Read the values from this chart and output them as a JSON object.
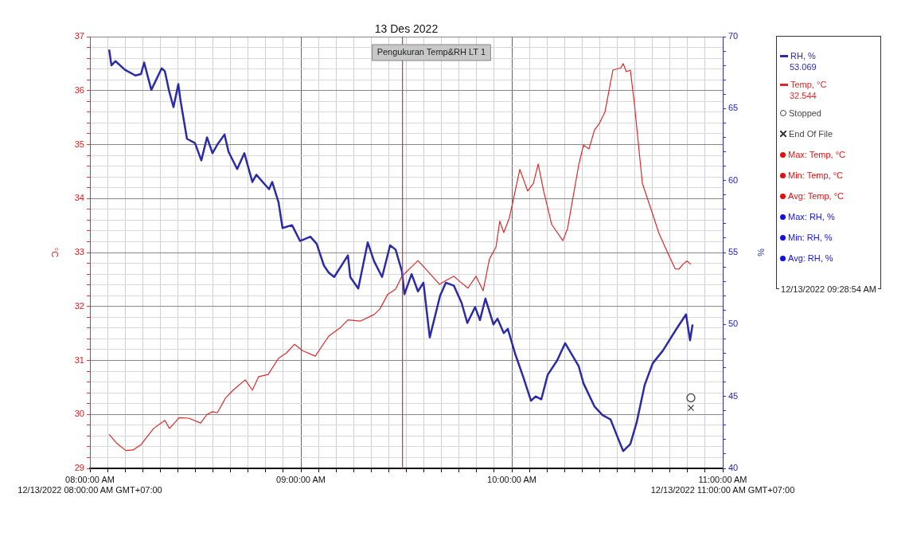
{
  "chart_data": {
    "type": "line",
    "title": "13 Des 2022",
    "ylabel": "°C",
    "y2label": "%",
    "legend": "right",
    "grid": true,
    "marker": "none",
    "line_style": "solid",
    "xlim": [
      8,
      11
    ],
    "xticks": [
      {
        "value": 8,
        "label": "08:00:00 AM\n12/13/2022 08:00:00 AM GMT+07:00"
      },
      {
        "value": 8.0833,
        "label": null
      },
      {
        "value": 8.1667,
        "label": null
      },
      {
        "value": 8.25,
        "label": null
      },
      {
        "value": 8.3333,
        "label": null
      },
      {
        "value": 8.4167,
        "label": null
      },
      {
        "value": 8.5,
        "label": null
      },
      {
        "value": 8.5833,
        "label": null
      },
      {
        "value": 8.6667,
        "label": null
      },
      {
        "value": 8.75,
        "label": null
      },
      {
        "value": 8.8333,
        "label": null
      },
      {
        "value": 8.9167,
        "label": null
      },
      {
        "value": 9,
        "label": "09:00:00 AM"
      },
      {
        "value": 9.0833,
        "label": null
      },
      {
        "value": 9.1667,
        "label": null
      },
      {
        "value": 9.25,
        "label": null
      },
      {
        "value": 9.3333,
        "label": null
      },
      {
        "value": 9.4167,
        "label": null
      },
      {
        "value": 9.5,
        "label": null
      },
      {
        "value": 9.5833,
        "label": null
      },
      {
        "value": 9.6667,
        "label": null
      },
      {
        "value": 9.75,
        "label": null
      },
      {
        "value": 9.8333,
        "label": null
      },
      {
        "value": 9.9167,
        "label": null
      },
      {
        "value": 10,
        "label": "10:00:00 AM"
      },
      {
        "value": 10.0833,
        "label": null
      },
      {
        "value": 10.1667,
        "label": null
      },
      {
        "value": 10.25,
        "label": null
      },
      {
        "value": 10.3333,
        "label": null
      },
      {
        "value": 10.4167,
        "label": null
      },
      {
        "value": 10.5,
        "label": null
      },
      {
        "value": 10.5833,
        "label": null
      },
      {
        "value": 10.6667,
        "label": null
      },
      {
        "value": 10.75,
        "label": null
      },
      {
        "value": 10.8333,
        "label": null
      },
      {
        "value": 10.9167,
        "label": null
      },
      {
        "value": 11,
        "label": "11:00:00 AM\n12/13/2022 11:00:00 AM GMT+07:00"
      }
    ],
    "ylim": [
      29,
      37
    ],
    "yticks": [
      29,
      {
        "value": 29.2,
        "label": null
      },
      {
        "value": 29.4,
        "label": null
      },
      {
        "value": 29.6,
        "label": null
      },
      {
        "value": 29.8,
        "label": null
      },
      30,
      {
        "value": 30.2,
        "label": null
      },
      {
        "value": 30.4,
        "label": null
      },
      {
        "value": 30.6,
        "label": null
      },
      {
        "value": 30.8,
        "label": null
      },
      31,
      {
        "value": 31.2,
        "label": null
      },
      {
        "value": 31.4,
        "label": null
      },
      {
        "value": 31.6,
        "label": null
      },
      {
        "value": 31.8,
        "label": null
      },
      32,
      {
        "value": 32.2,
        "label": null
      },
      {
        "value": 32.4,
        "label": null
      },
      {
        "value": 32.6,
        "label": null
      },
      {
        "value": 32.8,
        "label": null
      },
      33,
      {
        "value": 33.2,
        "label": null
      },
      {
        "value": 33.4,
        "label": null
      },
      {
        "value": 33.6,
        "label": null
      },
      {
        "value": 33.8,
        "label": null
      },
      34,
      {
        "value": 34.2,
        "label": null
      },
      {
        "value": 34.4,
        "label": null
      },
      {
        "value": 34.6,
        "label": null
      },
      {
        "value": 34.8,
        "label": null
      },
      35,
      {
        "value": 35.2,
        "label": null
      },
      {
        "value": 35.4,
        "label": null
      },
      {
        "value": 35.6,
        "label": null
      },
      {
        "value": 35.8,
        "label": null
      },
      36,
      {
        "value": 36.2,
        "label": null
      },
      {
        "value": 36.4,
        "label": null
      },
      {
        "value": 36.6,
        "label": null
      },
      {
        "value": 36.8,
        "label": null
      },
      37
    ],
    "y2lim": [
      40,
      70
    ],
    "y2ticks": [
      40,
      {
        "value": 41,
        "label": null
      },
      {
        "value": 42,
        "label": null
      },
      {
        "value": 43,
        "label": null
      },
      {
        "value": 44,
        "label": null
      },
      45,
      {
        "value": 46,
        "label": null
      },
      {
        "value": 47,
        "label": null
      },
      {
        "value": 48,
        "label": null
      },
      {
        "value": 49,
        "label": null
      },
      50,
      {
        "value": 51,
        "label": null
      },
      {
        "value": 52,
        "label": null
      },
      {
        "value": 53,
        "label": null
      },
      {
        "value": 54,
        "label": null
      },
      55,
      {
        "value": 56,
        "label": null
      },
      {
        "value": 57,
        "label": null
      },
      {
        "value": 58,
        "label": null
      },
      {
        "value": 59,
        "label": null
      },
      60,
      {
        "value": 61,
        "label": null
      },
      {
        "value": 62,
        "label": null
      },
      {
        "value": 63,
        "label": null
      },
      {
        "value": 64,
        "label": null
      },
      65,
      {
        "value": 66,
        "label": null
      },
      {
        "value": 67,
        "label": null
      },
      {
        "value": 68,
        "label": null
      },
      {
        "value": 69,
        "label": null
      },
      70
    ],
    "ref_lines": [
      {
        "axis": "x",
        "value": 9.4817,
        "label": "Pengukuran Temp&RH LT 1",
        "color": "#e03030"
      }
    ],
    "annotations": [
      "53.069",
      "32.544",
      "12/13/2022 09:28:54 AM"
    ],
    "series": [
      {
        "name": "RH, %",
        "axis": "y2",
        "color": "#2b2ba8",
        "x": [
          8.091,
          8.102,
          8.121,
          8.166,
          8.215,
          8.242,
          8.257,
          8.291,
          8.34,
          8.355,
          8.374,
          8.396,
          8.419,
          8.43,
          8.46,
          8.498,
          8.528,
          8.555,
          8.581,
          8.604,
          8.638,
          8.657,
          8.698,
          8.732,
          8.77,
          8.789,
          8.849,
          8.864,
          8.894,
          8.913,
          8.958,
          8.996,
          9.045,
          9.075,
          9.109,
          9.132,
          9.158,
          9.223,
          9.234,
          9.272,
          9.317,
          9.347,
          9.385,
          9.423,
          9.449,
          9.479,
          9.491,
          9.525,
          9.555,
          9.581,
          9.611,
          9.66,
          9.687,
          9.725,
          9.762,
          9.789,
          9.826,
          9.849,
          9.875,
          9.913,
          9.932,
          9.962,
          9.981,
          10.015,
          10.053,
          10.091,
          10.113,
          10.14,
          10.17,
          10.215,
          10.253,
          10.317,
          10.34,
          10.392,
          10.43,
          10.468,
          10.506,
          10.528,
          10.562,
          10.592,
          10.63,
          10.668,
          10.717,
          10.781,
          10.826,
          10.845,
          10.857
        ],
        "values": [
          69.1,
          68.0,
          68.3,
          67.7,
          67.3,
          67.4,
          68.2,
          66.3,
          67.8,
          67.6,
          66.3,
          65.1,
          66.7,
          65.5,
          62.9,
          62.6,
          61.4,
          63.0,
          61.9,
          62.5,
          63.2,
          62.0,
          60.8,
          61.9,
          59.9,
          60.4,
          59.4,
          59.9,
          58.5,
          56.7,
          56.9,
          55.8,
          56.1,
          55.6,
          54.1,
          53.6,
          53.3,
          54.8,
          53.3,
          52.5,
          55.7,
          54.4,
          53.3,
          55.5,
          55.2,
          53.7,
          52.1,
          53.5,
          52.3,
          52.9,
          49.1,
          52.0,
          52.9,
          52.7,
          51.5,
          50.1,
          51.2,
          50.3,
          51.8,
          50.0,
          50.4,
          49.4,
          49.7,
          48.0,
          46.4,
          44.7,
          45.0,
          44.8,
          46.5,
          47.5,
          48.7,
          47.1,
          45.9,
          44.3,
          43.7,
          43.4,
          42.0,
          41.2,
          41.7,
          43.2,
          45.8,
          47.3,
          48.2,
          49.7,
          50.7,
          48.9,
          50.0
        ]
      },
      {
        "name": "Temp, °C",
        "color": "#e02828",
        "x": [
          8.091,
          8.128,
          8.17,
          8.204,
          8.242,
          8.302,
          8.355,
          8.377,
          8.423,
          8.468,
          8.525,
          8.555,
          8.581,
          8.604,
          8.642,
          8.679,
          8.736,
          8.77,
          8.8,
          8.845,
          8.894,
          8.932,
          8.97,
          9.008,
          9.068,
          9.132,
          9.185,
          9.223,
          9.283,
          9.347,
          9.374,
          9.411,
          9.449,
          9.479,
          9.555,
          9.6,
          9.657,
          9.687,
          9.725,
          9.751,
          9.792,
          9.83,
          9.864,
          9.894,
          9.925,
          9.943,
          9.962,
          9.989,
          10.038,
          10.075,
          10.102,
          10.125,
          10.151,
          10.189,
          10.242,
          10.264,
          10.317,
          10.34,
          10.366,
          10.392,
          10.415,
          10.442,
          10.479,
          10.517,
          10.528,
          10.543,
          10.562,
          10.581,
          10.619,
          10.66,
          10.698,
          10.743,
          10.774,
          10.792,
          10.811,
          10.83,
          10.849
        ],
        "values": [
          29.63,
          29.46,
          29.33,
          29.34,
          29.44,
          29.74,
          29.89,
          29.74,
          29.94,
          29.93,
          29.84,
          30.0,
          30.05,
          30.03,
          30.3,
          30.45,
          30.64,
          30.45,
          30.7,
          30.74,
          31.04,
          31.14,
          31.3,
          31.18,
          31.08,
          31.45,
          31.6,
          31.75,
          31.73,
          31.85,
          31.95,
          32.22,
          32.32,
          32.56,
          32.85,
          32.66,
          32.41,
          32.48,
          32.56,
          32.47,
          32.34,
          32.56,
          32.29,
          32.88,
          33.1,
          33.58,
          33.37,
          33.65,
          34.54,
          34.14,
          34.28,
          34.64,
          34.14,
          33.52,
          33.22,
          33.44,
          34.62,
          34.99,
          34.92,
          35.27,
          35.39,
          35.61,
          36.38,
          36.42,
          36.5,
          36.35,
          36.38,
          35.76,
          34.28,
          33.8,
          33.35,
          32.96,
          32.7,
          32.69,
          32.78,
          32.84,
          32.78
        ]
      },
      {
        "name": "Stopped",
        "type": "scatter",
        "axis": "y2",
        "marker": "circle",
        "color": "#444444",
        "x": [
          10.849
        ],
        "values": [
          44.9
        ]
      },
      {
        "name": "End Of File",
        "type": "scatter",
        "axis": "y2",
        "marker": "cross",
        "color": "#444444",
        "x": [
          10.849
        ],
        "values": [
          44.2
        ]
      },
      {
        "name": "Max: Temp, °C",
        "type": "scatter",
        "marker": "circle",
        "color": "#e01010"
      },
      {
        "name": "Min: Temp, °C",
        "type": "scatter",
        "marker": "circle",
        "color": "#e01010"
      },
      {
        "name": "Avg: Temp, °C",
        "type": "scatter",
        "marker": "circle",
        "color": "#e01010"
      },
      {
        "name": "Max: RH, %",
        "type": "scatter",
        "axis": "y2",
        "marker": "circle",
        "color": "#1010e0"
      },
      {
        "name": "Min: RH, %",
        "type": "scatter",
        "axis": "y2",
        "marker": "circle",
        "color": "#1010e0"
      },
      {
        "name": "Avg: RH, %",
        "type": "scatter",
        "axis": "y2",
        "marker": "circle",
        "color": "#1010e0"
      }
    ]
  }
}
